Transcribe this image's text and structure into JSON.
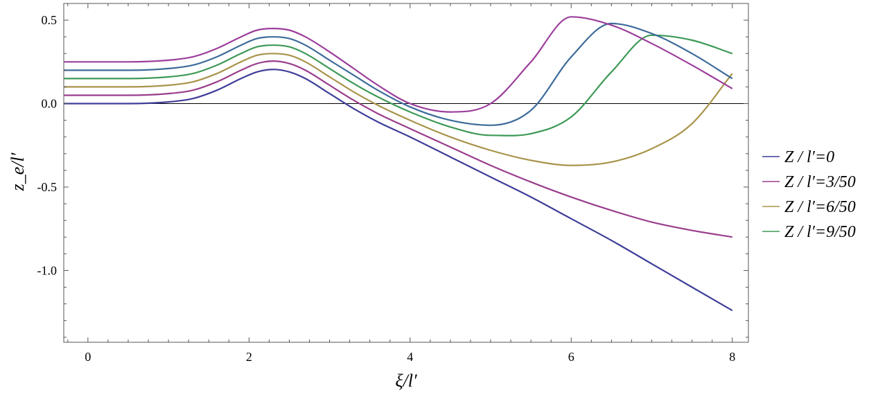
{
  "chart_data": {
    "type": "line",
    "title": "",
    "xlabel": "ξ/l′",
    "ylabel": "z_e/l′",
    "xlim": [
      -0.3,
      8.2
    ],
    "ylim": [
      -1.43,
      0.6
    ],
    "xticks": [
      0,
      2,
      4,
      6,
      8
    ],
    "xtick_labels": [
      "0",
      "2",
      "4",
      "6",
      "8"
    ],
    "yticks": [
      0.5,
      0.0,
      -0.5,
      -1.0
    ],
    "ytick_labels": [
      "0.5",
      "0.0",
      "-0.5",
      "-1.0"
    ],
    "zero_line": 0,
    "grid": false,
    "legend_position": "right",
    "series": [
      {
        "name": "Z / l′=0",
        "color": "#3d3d99",
        "x": [
          -0.3,
          0.5,
          1.0,
          1.3,
          1.6,
          1.9,
          2.1,
          2.3,
          2.5,
          2.7,
          3.0,
          3.3,
          3.6,
          4.0,
          4.5,
          5.0,
          5.5,
          6.0,
          6.5,
          7.0,
          7.5,
          8.0
        ],
        "y": [
          0.0,
          0.0,
          0.01,
          0.03,
          0.08,
          0.15,
          0.19,
          0.205,
          0.19,
          0.15,
          0.06,
          -0.03,
          -0.11,
          -0.2,
          -0.32,
          -0.44,
          -0.56,
          -0.69,
          -0.82,
          -0.96,
          -1.1,
          -1.24
        ]
      },
      {
        "name": "Z / l′=3/50",
        "color": "#993d8c",
        "x": [
          -0.3,
          0.5,
          1.0,
          1.3,
          1.6,
          1.9,
          2.1,
          2.3,
          2.5,
          2.7,
          3.0,
          3.3,
          3.6,
          4.0,
          4.5,
          5.0,
          5.5,
          6.0,
          6.5,
          7.0,
          7.5,
          8.0
        ],
        "y": [
          0.05,
          0.05,
          0.06,
          0.08,
          0.13,
          0.2,
          0.24,
          0.255,
          0.24,
          0.2,
          0.11,
          0.02,
          -0.06,
          -0.15,
          -0.26,
          -0.37,
          -0.47,
          -0.56,
          -0.64,
          -0.71,
          -0.76,
          -0.8
        ]
      },
      {
        "name": "Z / l′=6/50",
        "color": "#a8934a",
        "x": [
          -0.3,
          0.5,
          1.0,
          1.3,
          1.6,
          1.9,
          2.1,
          2.3,
          2.5,
          2.7,
          3.0,
          3.3,
          3.6,
          4.0,
          4.5,
          5.0,
          5.5,
          6.0,
          6.5,
          7.0,
          7.5,
          8.0
        ],
        "y": [
          0.1,
          0.1,
          0.11,
          0.13,
          0.18,
          0.25,
          0.29,
          0.3,
          0.29,
          0.25,
          0.16,
          0.07,
          -0.01,
          -0.1,
          -0.2,
          -0.28,
          -0.34,
          -0.37,
          -0.35,
          -0.27,
          -0.12,
          0.18
        ]
      },
      {
        "name": "Z / l′=9/50",
        "color": "#3d9956",
        "x": [
          -0.3,
          0.5,
          1.0,
          1.3,
          1.6,
          1.9,
          2.1,
          2.3,
          2.5,
          2.7,
          3.0,
          3.3,
          3.6,
          4.0,
          4.5,
          5.0,
          5.5,
          6.0,
          6.5,
          7.0,
          7.5,
          8.0
        ],
        "y": [
          0.15,
          0.15,
          0.16,
          0.18,
          0.23,
          0.3,
          0.34,
          0.35,
          0.34,
          0.3,
          0.21,
          0.12,
          0.04,
          -0.05,
          -0.14,
          -0.19,
          -0.18,
          -0.08,
          0.19,
          0.41,
          0.38,
          0.3
        ]
      },
      {
        "name": "",
        "color": "#3d6b99",
        "x": [
          -0.3,
          0.5,
          1.0,
          1.3,
          1.6,
          1.9,
          2.1,
          2.3,
          2.5,
          2.7,
          3.0,
          3.3,
          3.6,
          4.0,
          4.5,
          5.0,
          5.5,
          6.0,
          6.5,
          7.0,
          7.5,
          8.0
        ],
        "y": [
          0.2,
          0.2,
          0.21,
          0.23,
          0.28,
          0.35,
          0.39,
          0.4,
          0.39,
          0.35,
          0.26,
          0.17,
          0.08,
          -0.02,
          -0.1,
          -0.13,
          -0.04,
          0.28,
          0.48,
          0.42,
          0.3,
          0.15
        ]
      },
      {
        "name": "",
        "color": "#9b3d9b",
        "x": [
          -0.3,
          0.5,
          1.0,
          1.3,
          1.6,
          1.9,
          2.1,
          2.3,
          2.5,
          2.7,
          3.0,
          3.3,
          3.6,
          4.0,
          4.5,
          5.0,
          5.5,
          6.0,
          6.5,
          7.0,
          7.5,
          8.0
        ],
        "y": [
          0.25,
          0.25,
          0.26,
          0.28,
          0.33,
          0.4,
          0.44,
          0.45,
          0.44,
          0.4,
          0.31,
          0.21,
          0.11,
          0.0,
          -0.05,
          0.0,
          0.25,
          0.52,
          0.47,
          0.36,
          0.23,
          0.09
        ]
      }
    ]
  }
}
